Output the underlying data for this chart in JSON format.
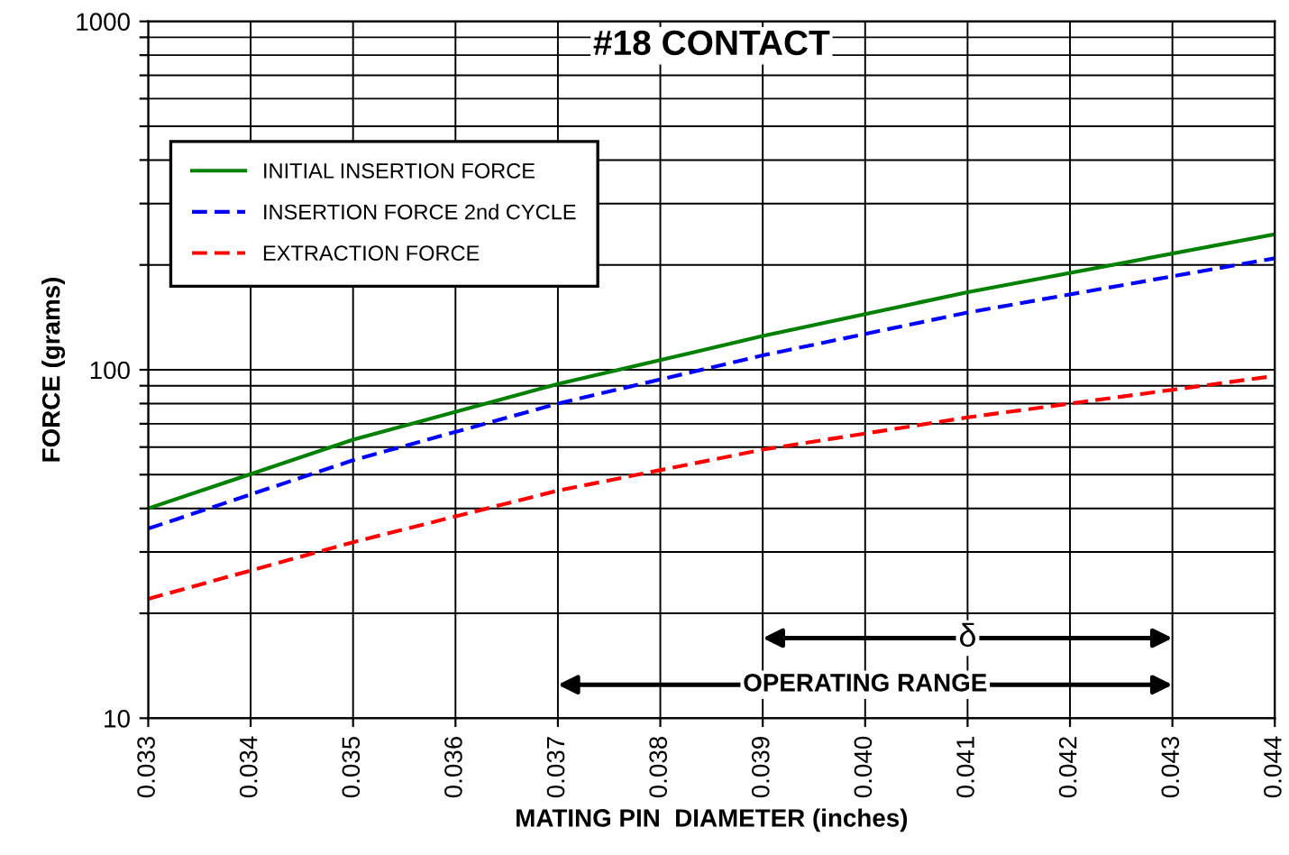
{
  "chart_data": {
    "type": "line",
    "title": "#18 CONTACT",
    "xlabel": "MATING PIN  DIAMETER (inches)",
    "ylabel": "FORCE (grams)",
    "x": [
      0.033,
      0.035,
      0.037,
      0.039,
      0.041,
      0.044
    ],
    "series": [
      {
        "name": "INITIAL INSERTION FORCE",
        "color": "#008000",
        "line_style": "solid",
        "values": [
          40,
          63,
          91,
          125,
          167,
          245
        ]
      },
      {
        "name": "INSERTION FORCE 2nd CYCLE",
        "color": "#0000ff",
        "line_style": "dashed",
        "values": [
          35,
          55,
          80,
          110,
          146,
          209
        ]
      },
      {
        "name": "EXTRACTION FORCE",
        "color": "#ff0000",
        "line_style": "dashed",
        "values": [
          22,
          32,
          45,
          59,
          73,
          96
        ]
      }
    ],
    "log": "y",
    "xlim": [
      0.033,
      0.044
    ],
    "ylim": [
      10,
      1000
    ],
    "xticks": [
      {
        "value": 0.033,
        "label": "0.033"
      },
      {
        "value": 0.034,
        "label": "0.034"
      },
      {
        "value": 0.035,
        "label": "0.035"
      },
      {
        "value": 0.036,
        "label": "0.036"
      },
      {
        "value": 0.037,
        "label": "0.037"
      },
      {
        "value": 0.038,
        "label": "0.038"
      },
      {
        "value": 0.039,
        "label": "0.039"
      },
      {
        "value": 0.04,
        "label": "0.040"
      },
      {
        "value": 0.041,
        "label": "0.041"
      },
      {
        "value": 0.042,
        "label": "0.042"
      },
      {
        "value": 0.043,
        "label": "0.043"
      },
      {
        "value": 0.044,
        "label": "0.044"
      }
    ],
    "yticks": [
      10,
      {
        "value": 20,
        "label": null
      },
      {
        "value": 30,
        "label": null
      },
      {
        "value": 40,
        "label": null
      },
      {
        "value": 50,
        "label": null
      },
      {
        "value": 60,
        "label": null
      },
      {
        "value": 70,
        "label": null
      },
      {
        "value": 80,
        "label": null
      },
      {
        "value": 90,
        "label": null
      },
      100,
      {
        "value": 200,
        "label": null
      },
      {
        "value": 300,
        "label": null
      },
      {
        "value": 400,
        "label": null
      },
      {
        "value": 500,
        "label": null
      },
      {
        "value": 600,
        "label": null
      },
      {
        "value": 700,
        "label": null
      },
      {
        "value": 800,
        "label": null
      },
      {
        "value": 900,
        "label": null
      },
      1000
    ],
    "grid": true,
    "legend": "top left",
    "annotations": [
      "δ",
      "OPERATING RANGE"
    ]
  }
}
